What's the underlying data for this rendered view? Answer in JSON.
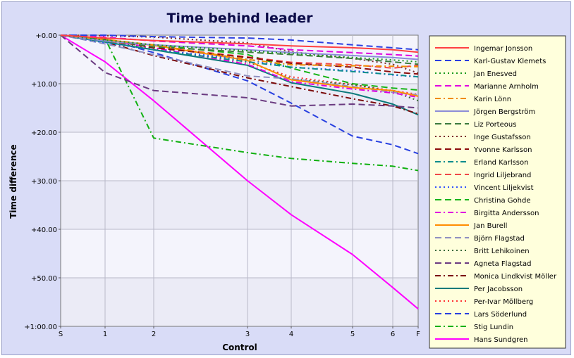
{
  "chart_data": {
    "type": "line",
    "title": "Time behind leader",
    "xlabel": "Control",
    "ylabel": "Time difference",
    "x_ticks": [
      "S",
      "1",
      "2",
      "3",
      "4",
      "5",
      "6",
      "F"
    ],
    "y_ticks": [
      "+0.00",
      "+10.00",
      "+20.00",
      "+30.00",
      "+40.00",
      "+50.00",
      "+1:00.00"
    ],
    "y_unit": "minutes behind leader",
    "ylim": [
      0,
      60
    ],
    "y_inverted": true,
    "grid": true,
    "legend_position": "right",
    "series": [
      {
        "name": "Ingemar Jonsson",
        "color": "#ff4040",
        "dash": "solid",
        "values": [
          0,
          0.6,
          1.1,
          1.8,
          2.2,
          2.6,
          3.0,
          3.5
        ]
      },
      {
        "name": "Karl-Gustav Klemets",
        "color": "#2b3fe0",
        "dash": "dash",
        "values": [
          0,
          0,
          0.3,
          0.6,
          1.0,
          2.0,
          2.6,
          3.0
        ]
      },
      {
        "name": "Jan Enesved",
        "color": "#1b9a1b",
        "dash": "dot",
        "values": [
          0,
          1.0,
          2.0,
          3.2,
          3.8,
          4.6,
          5.1,
          5.5
        ]
      },
      {
        "name": "Marianne Arnholm",
        "color": "#e000e0",
        "dash": "dash",
        "values": [
          0,
          0.4,
          1.2,
          2.2,
          3.0,
          3.6,
          4.0,
          4.3
        ]
      },
      {
        "name": "Karin Lönn",
        "color": "#f08c00",
        "dash": "dashdot",
        "values": [
          0,
          0.9,
          2.0,
          5.0,
          6.1,
          6.3,
          6.4,
          6.5
        ]
      },
      {
        "name": "Jörgen Bergström",
        "color": "#8c8cd8",
        "dash": "solid",
        "values": [
          0,
          1.2,
          2.0,
          3.0,
          3.6,
          4.2,
          4.6,
          5.0
        ]
      },
      {
        "name": "Liz Porteous",
        "color": "#3c7a3c",
        "dash": "dash",
        "values": [
          0,
          1.0,
          2.4,
          3.5,
          4.0,
          4.8,
          5.5,
          6.0
        ]
      },
      {
        "name": "Inge Gustafsson",
        "color": "#7a2a2a",
        "dash": "dot",
        "values": [
          0,
          0.1,
          0.4,
          1.6,
          3.4,
          4.8,
          6.0,
          7.8
        ]
      },
      {
        "name": "Yvonne Karlsson",
        "color": "#8c0c0c",
        "dash": "dash",
        "values": [
          0,
          0.9,
          2.6,
          4.6,
          5.8,
          6.6,
          7.6,
          8.0
        ]
      },
      {
        "name": "Erland Karlsson",
        "color": "#0c8c8c",
        "dash": "dashdot",
        "values": [
          0,
          1.4,
          3.0,
          5.5,
          6.6,
          7.5,
          8.1,
          8.6
        ]
      },
      {
        "name": "Ingrid Liljebrand",
        "color": "#f04848",
        "dash": "dash",
        "values": [
          0,
          1.2,
          2.4,
          4.5,
          5.6,
          6.1,
          6.8,
          6.2
        ]
      },
      {
        "name": "Vincent Liljekvist",
        "color": "#3050ff",
        "dash": "dot",
        "values": [
          0,
          1.6,
          3.0,
          5.0,
          6.6,
          7.3,
          8.2,
          8.6
        ]
      },
      {
        "name": "Christina Gohde",
        "color": "#18b418",
        "dash": "dash",
        "values": [
          0,
          1.2,
          2.0,
          4.0,
          6.8,
          10.0,
          10.9,
          11.3
        ]
      },
      {
        "name": "Birgitta Andersson",
        "color": "#e000e0",
        "dash": "dashdot",
        "values": [
          0,
          1.0,
          2.6,
          6.0,
          9.6,
          11.1,
          11.9,
          12.8
        ]
      },
      {
        "name": "Jan Burell",
        "color": "#ff8c00",
        "dash": "solid",
        "values": [
          0,
          0.9,
          2.1,
          5.2,
          9.2,
          10.8,
          11.4,
          12.6
        ]
      },
      {
        "name": "Björn Flagstad",
        "color": "#9090c0",
        "dash": "dash",
        "values": [
          0,
          1.8,
          4.0,
          8.4,
          9.0,
          10.6,
          11.8,
          12.3
        ]
      },
      {
        "name": "Britt Lehikoinen",
        "color": "#3a6a3a",
        "dash": "dot",
        "values": [
          0,
          1.1,
          3.0,
          5.4,
          9.0,
          10.2,
          11.6,
          13.5
        ]
      },
      {
        "name": "Agneta Flagstad",
        "color": "#6a3a80",
        "dash": "dash",
        "values": [
          0,
          7.7,
          11.4,
          12.9,
          14.6,
          14.2,
          14.6,
          15.0
        ]
      },
      {
        "name": "Monica Lindkvist Möller",
        "color": "#7a0a0a",
        "dash": "dashdot",
        "values": [
          0,
          1.4,
          4.2,
          8.8,
          10.6,
          13.1,
          14.6,
          16.2
        ]
      },
      {
        "name": "Per Jacobsson",
        "color": "#0a7a7a",
        "dash": "solid",
        "values": [
          0,
          1.4,
          3.0,
          6.2,
          9.8,
          12.0,
          14.2,
          16.4
        ]
      },
      {
        "name": "Per-Ivar Möllberg",
        "color": "#ff3030",
        "dash": "dot",
        "values": [
          0,
          1.2,
          2.8,
          5.6,
          8.6,
          10.2,
          11.4,
          12.2
        ]
      },
      {
        "name": "Lars Söderlund",
        "color": "#2840e0",
        "dash": "dash",
        "values": [
          0,
          0.8,
          3.6,
          9.4,
          14.0,
          20.8,
          22.6,
          24.4
        ]
      },
      {
        "name": "Stig Lundin",
        "color": "#10b010",
        "dash": "dashdot",
        "values": [
          0,
          0.7,
          21.2,
          24.2,
          25.4,
          26.4,
          27.0,
          27.9
        ]
      },
      {
        "name": "Hans Sundgren",
        "color": "#ff00ff",
        "dash": "solid",
        "values": [
          0,
          5.5,
          13.5,
          30.0,
          37.0,
          45.2,
          52.0,
          56.4
        ]
      }
    ]
  }
}
